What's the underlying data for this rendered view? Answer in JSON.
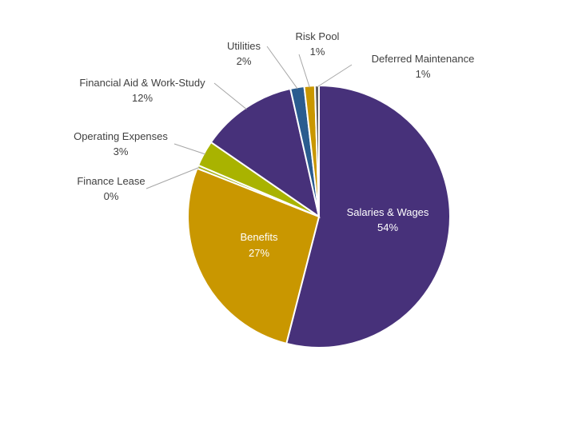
{
  "chart_data": {
    "type": "pie",
    "title": "",
    "slices": [
      {
        "label": "Salaries & Wages",
        "pct_label": "54%",
        "value": 54.0,
        "color": "#47317A"
      },
      {
        "label": "Benefits",
        "pct_label": "27%",
        "value": 27.0,
        "color": "#C99700"
      },
      {
        "label": "Finance Lease",
        "pct_label": "0%",
        "value": 0.4,
        "color": "#A9B31A"
      },
      {
        "label": "Operating Expenses",
        "pct_label": "3%",
        "value": 3.2,
        "color": "#A9B300"
      },
      {
        "label": "Financial Aid & Work-Study",
        "pct_label": "12%",
        "value": 11.9,
        "color": "#47317A"
      },
      {
        "label": "Utilities",
        "pct_label": "2%",
        "value": 1.7,
        "color": "#2A5C8F"
      },
      {
        "label": "Risk Pool",
        "pct_label": "1%",
        "value": 1.3,
        "color": "#C99700"
      },
      {
        "label": "Deferred Maintenance",
        "pct_label": "1%",
        "value": 0.5,
        "color": "#5F5F5F"
      }
    ],
    "legend": "none",
    "label_position": "data labels with leader lines"
  }
}
